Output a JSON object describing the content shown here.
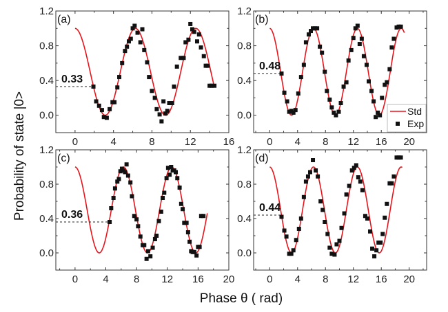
{
  "figure": {
    "ylabel": "Probability of state |0>",
    "xlabel": "Phase θ ( rad)",
    "legend": {
      "entries": [
        {
          "label": "Std",
          "kind": "line",
          "color": "#e8141b"
        },
        {
          "label": "Exp",
          "kind": "marker",
          "color": "#111111"
        }
      ],
      "placement": "bottom-right of panel (b)"
    }
  },
  "chart_data": [
    {
      "type": "line+scatter",
      "panel": "(a)",
      "annotation": "0.33",
      "annotation_value": 0.33,
      "xlim": [
        -2,
        16
      ],
      "ylim": [
        -0.2,
        1.2
      ],
      "xticks": [
        "0",
        "4",
        "8",
        "12",
        "16"
      ],
      "xtick_values": [
        0,
        4,
        8,
        12,
        16
      ],
      "yticks": [
        "0.0",
        "0.4",
        "0.8",
        "1.2"
      ],
      "ytick_values": [
        0.0,
        0.4,
        0.8,
        1.2
      ],
      "std_curve": {
        "name": "Std",
        "formula": "(1+cos θ)/2",
        "x_range": [
          0,
          14.5
        ]
      },
      "exp_points": {
        "name": "Exp",
        "x": [
          1.91,
          2.2,
          2.5,
          2.8,
          3.0,
          3.3,
          3.6,
          3.9,
          4.1,
          4.4,
          4.6,
          4.9,
          5.2,
          5.4,
          5.6,
          5.8,
          6.0,
          6.2,
          6.5,
          6.8,
          7.0,
          7.2,
          7.5,
          7.7,
          8.0,
          8.3,
          8.5,
          8.8,
          9.0,
          9.2,
          9.4,
          9.6,
          9.8,
          10.1,
          10.3,
          10.6,
          11.0,
          11.3,
          11.5,
          11.8,
          12.0,
          12.2,
          12.4,
          12.7,
          12.9,
          13.1,
          13.4,
          13.6,
          13.8,
          14.0,
          14.2,
          14.5
        ],
        "y": [
          0.33,
          0.16,
          0.11,
          0.06,
          -0.02,
          -0.03,
          0.07,
          0.15,
          0.15,
          0.32,
          0.44,
          0.6,
          0.74,
          0.79,
          0.85,
          0.88,
          1.0,
          1.03,
          0.95,
          0.84,
          0.99,
          0.75,
          0.61,
          0.44,
          0.28,
          0.2,
          0.07,
          0.01,
          -0.07,
          0.16,
          0.02,
          0.05,
          0.14,
          0.14,
          0.33,
          0.56,
          0.66,
          0.66,
          0.84,
          0.87,
          1.05,
          0.99,
          0.96,
          0.85,
          0.93,
          0.78,
          0.68,
          0.57,
          0.57,
          0.34,
          0.34,
          0.34
        ]
      }
    },
    {
      "type": "line+scatter",
      "panel": "(b)",
      "annotation": "0.48",
      "annotation_value": 0.48,
      "xlim": [
        -2.3,
        22.5
      ],
      "ylim": [
        -0.2,
        1.2
      ],
      "xticks": [
        "0",
        "4",
        "8",
        "12",
        "16",
        "20"
      ],
      "xtick_values": [
        0,
        4,
        8,
        12,
        16,
        20
      ],
      "yticks": [
        "0.0",
        "0.4",
        "0.8",
        "1.2"
      ],
      "ytick_values": [
        0.0,
        0.4,
        0.8,
        1.2
      ],
      "std_curve": {
        "name": "Std",
        "formula": "(1+cos θ)/2",
        "x_range": [
          0,
          19.3
        ]
      },
      "exp_points": {
        "name": "Exp",
        "x": [
          1.7,
          2.1,
          2.5,
          2.8,
          3.1,
          3.4,
          3.7,
          4.1,
          4.5,
          4.9,
          5.2,
          5.6,
          5.9,
          6.2,
          6.5,
          6.8,
          7.2,
          7.5,
          7.9,
          8.2,
          8.6,
          8.9,
          9.2,
          9.5,
          9.9,
          10.2,
          10.6,
          11.0,
          11.3,
          11.7,
          12.0,
          12.3,
          12.6,
          12.9,
          13.2,
          13.5,
          13.9,
          14.2,
          14.6,
          14.9,
          15.2,
          15.5,
          15.8,
          16.1,
          16.5,
          16.8,
          17.2,
          17.5,
          17.8,
          18.2,
          18.5,
          18.8
        ],
        "y": [
          0.48,
          0.26,
          0.16,
          0.04,
          0.05,
          0.03,
          0.06,
          0.25,
          0.44,
          0.58,
          0.84,
          0.93,
          0.97,
          1.0,
          1.0,
          1.0,
          0.79,
          0.72,
          0.5,
          0.28,
          0.18,
          0.09,
          0.03,
          0.0,
          0.04,
          0.14,
          0.33,
          0.38,
          0.63,
          0.75,
          0.89,
          1.0,
          1.03,
          0.82,
          0.88,
          0.68,
          0.58,
          0.39,
          0.28,
          0.16,
          -0.02,
          0.03,
          0.0,
          0.2,
          0.35,
          0.38,
          0.53,
          0.78,
          0.88,
          1.01,
          1.02,
          1.02
        ]
      }
    },
    {
      "type": "line+scatter",
      "panel": "(c)",
      "annotation": "0.36",
      "annotation_value": 0.36,
      "xlim": [
        -2.5,
        20
      ],
      "ylim": [
        -0.2,
        1.2
      ],
      "xticks": [
        "0",
        "4",
        "8",
        "12",
        "16",
        "20"
      ],
      "xtick_values": [
        0,
        4,
        8,
        12,
        16,
        20
      ],
      "yticks": [
        "0.0",
        "0.4",
        "0.8",
        "1.2"
      ],
      "ytick_values": [
        0.0,
        0.4,
        0.8,
        1.2
      ],
      "std_curve": {
        "name": "Std",
        "formula": "(1+cos θ)/2",
        "x_range": [
          0,
          17.2
        ]
      },
      "exp_points": {
        "name": "Exp",
        "x": [
          4.5,
          4.7,
          5.0,
          5.2,
          5.5,
          5.7,
          5.9,
          6.1,
          6.3,
          6.5,
          6.7,
          6.9,
          7.2,
          7.4,
          7.7,
          8.0,
          8.2,
          8.5,
          8.8,
          9.0,
          9.3,
          9.5,
          9.8,
          10.1,
          10.4,
          10.6,
          10.9,
          11.2,
          11.4,
          11.6,
          11.9,
          12.1,
          12.3,
          12.5,
          12.7,
          12.9,
          13.1,
          13.3,
          13.6,
          13.8,
          14.0,
          14.2,
          14.5,
          14.7,
          14.9,
          15.1,
          15.3,
          15.5,
          15.8,
          16.0,
          16.2,
          16.4,
          16.7
        ],
        "y": [
          0.36,
          0.52,
          0.64,
          0.75,
          0.83,
          0.86,
          0.95,
          0.98,
          0.96,
          0.94,
          1.03,
          0.9,
          0.82,
          0.66,
          0.43,
          0.39,
          0.31,
          0.19,
          0.09,
          0.09,
          -0.07,
          0.02,
          -0.04,
          0.06,
          0.16,
          0.2,
          0.37,
          0.48,
          0.64,
          0.7,
          0.87,
          0.99,
          0.91,
          1.0,
          0.96,
          0.96,
          0.94,
          0.87,
          0.76,
          0.57,
          0.51,
          0.35,
          0.35,
          0.24,
          0.13,
          0.02,
          0.01,
          0.01,
          -0.03,
          0.07,
          0.07,
          0.43,
          0.43
        ]
      }
    },
    {
      "type": "line+scatter",
      "panel": "(d)",
      "annotation": "0.44",
      "annotation_value": 0.44,
      "xlim": [
        -2.3,
        22.5
      ],
      "ylim": [
        -0.2,
        1.2
      ],
      "xticks": [
        "0",
        "4",
        "8",
        "12",
        "16",
        "20"
      ],
      "xtick_values": [
        0,
        4,
        8,
        12,
        16,
        20
      ],
      "yticks": [
        "0.0",
        "0.4",
        "0.8",
        "1.2"
      ],
      "ytick_values": [
        0.0,
        0.4,
        0.8,
        1.2
      ],
      "std_curve": {
        "name": "Std",
        "formula": "(1+cos θ)/2",
        "x_range": [
          0,
          19
        ]
      },
      "exp_points": {
        "name": "Exp",
        "x": [
          1.7,
          2.1,
          2.4,
          2.8,
          3.1,
          3.4,
          3.8,
          4.2,
          4.5,
          4.9,
          5.2,
          5.5,
          5.8,
          6.2,
          6.6,
          6.9,
          7.3,
          7.6,
          7.9,
          8.3,
          8.6,
          8.9,
          9.3,
          9.6,
          10.0,
          10.3,
          10.7,
          11.0,
          11.4,
          11.8,
          12.1,
          12.4,
          12.7,
          13.0,
          13.3,
          13.7,
          14.0,
          14.4,
          14.7,
          15.0,
          15.3,
          15.6,
          15.9,
          16.2,
          16.5,
          16.8,
          17.2,
          17.5,
          17.8,
          18.2,
          18.5,
          18.8
        ],
        "y": [
          0.42,
          0.26,
          0.19,
          -0.01,
          -0.01,
          0.03,
          0.15,
          0.28,
          0.4,
          0.65,
          0.83,
          0.89,
          0.94,
          1.08,
          0.96,
          0.89,
          0.6,
          0.5,
          0.36,
          0.22,
          0.06,
          -0.01,
          -0.02,
          0.1,
          0.14,
          0.29,
          0.46,
          0.68,
          0.78,
          0.96,
          0.99,
          1.02,
          0.88,
          0.83,
          0.73,
          0.43,
          0.4,
          0.25,
          0.05,
          -0.04,
          0.03,
          0.12,
          0.12,
          0.22,
          0.41,
          0.57,
          0.81,
          0.81,
          0.89,
          1.11,
          1.11,
          1.11
        ]
      }
    }
  ]
}
